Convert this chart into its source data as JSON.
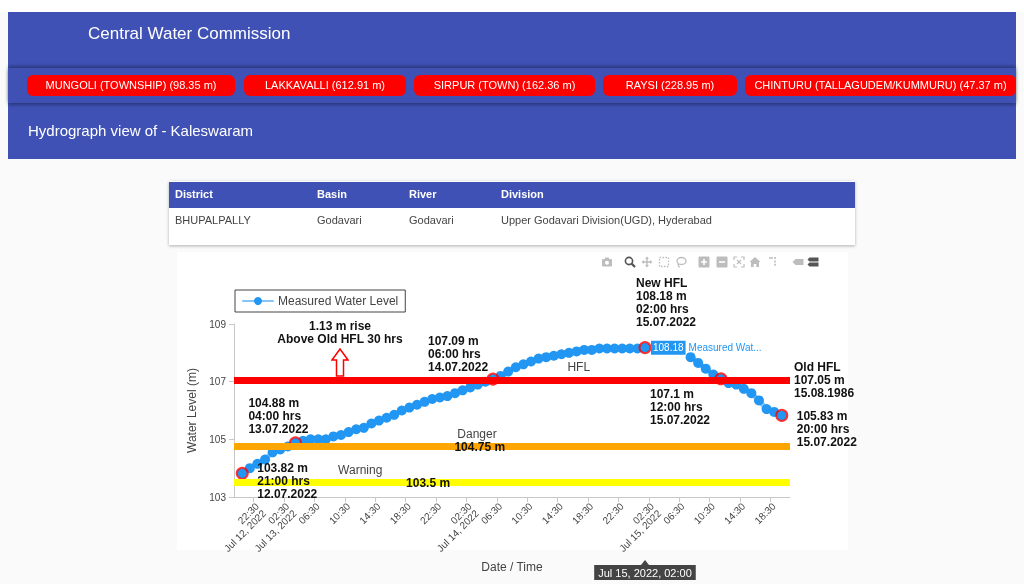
{
  "chart_data": {
    "type": "line",
    "title": "Hydrograph view of - Kaleswaram",
    "xlabel": "Date / Time",
    "ylabel": "Water Level (m)",
    "x": [
      "2022-07-12T21:00",
      "2022-07-12T22:00",
      "2022-07-12T23:00",
      "2022-07-13T00:00",
      "2022-07-13T01:00",
      "2022-07-13T02:00",
      "2022-07-13T03:00",
      "2022-07-13T04:00",
      "2022-07-13T05:00",
      "2022-07-13T06:00",
      "2022-07-13T07:00",
      "2022-07-13T08:00",
      "2022-07-13T09:00",
      "2022-07-13T10:00",
      "2022-07-13T11:00",
      "2022-07-13T12:00",
      "2022-07-13T13:00",
      "2022-07-13T14:00",
      "2022-07-13T15:00",
      "2022-07-13T16:00",
      "2022-07-13T17:00",
      "2022-07-13T18:00",
      "2022-07-13T19:00",
      "2022-07-13T20:00",
      "2022-07-13T21:00",
      "2022-07-13T22:00",
      "2022-07-13T23:00",
      "2022-07-14T00:00",
      "2022-07-14T01:00",
      "2022-07-14T02:00",
      "2022-07-14T03:00",
      "2022-07-14T04:00",
      "2022-07-14T05:00",
      "2022-07-14T06:00",
      "2022-07-14T07:00",
      "2022-07-14T08:00",
      "2022-07-14T09:00",
      "2022-07-14T10:00",
      "2022-07-14T11:00",
      "2022-07-14T12:00",
      "2022-07-14T13:00",
      "2022-07-14T14:00",
      "2022-07-14T15:00",
      "2022-07-14T16:00",
      "2022-07-14T17:00",
      "2022-07-14T18:00",
      "2022-07-14T19:00",
      "2022-07-14T20:00",
      "2022-07-14T21:00",
      "2022-07-14T22:00",
      "2022-07-14T23:00",
      "2022-07-15T00:00",
      "2022-07-15T01:00",
      "2022-07-15T02:00",
      "2022-07-15T03:00",
      "2022-07-15T04:00",
      "2022-07-15T05:00",
      "2022-07-15T06:00",
      "2022-07-15T07:00",
      "2022-07-15T08:00",
      "2022-07-15T09:00",
      "2022-07-15T10:00",
      "2022-07-15T11:00",
      "2022-07-15T12:00",
      "2022-07-15T13:00",
      "2022-07-15T14:00",
      "2022-07-15T15:00",
      "2022-07-15T16:00",
      "2022-07-15T17:00",
      "2022-07-15T18:00",
      "2022-07-15T19:00",
      "2022-07-15T20:00"
    ],
    "series": [
      {
        "name": "Measured Water Level",
        "color": "#2196f3",
        "values": [
          103.82,
          104.0,
          104.15,
          104.3,
          104.55,
          104.65,
          104.75,
          104.88,
          104.95,
          105.0,
          105.0,
          105.0,
          105.1,
          105.15,
          105.25,
          105.35,
          105.4,
          105.55,
          105.65,
          105.75,
          105.85,
          106.0,
          106.1,
          106.2,
          106.3,
          106.4,
          106.45,
          106.5,
          106.6,
          106.7,
          106.8,
          106.9,
          107.0,
          107.09,
          107.2,
          107.35,
          107.5,
          107.6,
          107.7,
          107.8,
          107.85,
          107.9,
          107.95,
          108.0,
          108.05,
          108.1,
          108.1,
          108.15,
          108.15,
          108.15,
          108.15,
          108.15,
          108.15,
          108.18,
          null,
          null,
          null,
          null,
          null,
          107.85,
          107.65,
          107.45,
          107.25,
          107.1,
          106.95,
          106.9,
          106.75,
          106.6,
          106.35,
          106.05,
          105.95,
          105.83
        ]
      },
      {
        "type": "scatter",
        "color": "#ff0000",
        "x": [
          "2022-07-12T21:00",
          "2022-07-13T04:00",
          "2022-07-14T06:00",
          "2022-07-15T02:00",
          "2022-07-15T12:00",
          "2022-07-15T20:00"
        ],
        "values": [
          103.82,
          104.88,
          107.09,
          108.18,
          107.1,
          105.83
        ]
      }
    ],
    "xlim": [
      "2022-07-12T19:55",
      "2022-07-15T21:05"
    ],
    "xticks": [
      {
        "value": "2022-07-12T22:30",
        "label": "22:30\nJul 12, 2022"
      },
      {
        "value": "2022-07-13T02:30",
        "label": "02:30\nJul 13, 2022"
      },
      {
        "value": "2022-07-13T06:30",
        "label": "06:30"
      },
      {
        "value": "2022-07-13T10:30",
        "label": "10:30"
      },
      {
        "value": "2022-07-13T14:30",
        "label": "14:30"
      },
      {
        "value": "2022-07-13T18:30",
        "label": "18:30"
      },
      {
        "value": "2022-07-13T22:30",
        "label": "22:30"
      },
      {
        "value": "2022-07-14T02:30",
        "label": "02:30\nJul 14, 2022"
      },
      {
        "value": "2022-07-14T06:30",
        "label": "06:30"
      },
      {
        "value": "2022-07-14T10:30",
        "label": "10:30"
      },
      {
        "value": "2022-07-14T14:30",
        "label": "14:30"
      },
      {
        "value": "2022-07-14T18:30",
        "label": "18:30"
      },
      {
        "value": "2022-07-14T22:30",
        "label": "22:30"
      },
      {
        "value": "2022-07-15T02:30",
        "label": "02:30\nJul 15, 2022"
      },
      {
        "value": "2022-07-15T06:30",
        "label": "06:30"
      },
      {
        "value": "2022-07-15T10:30",
        "label": "10:30"
      },
      {
        "value": "2022-07-15T14:30",
        "label": "14:30"
      },
      {
        "value": "2022-07-15T18:30",
        "label": "18:30"
      }
    ],
    "ylim": [
      103,
      109
    ],
    "yticks": [
      103,
      105,
      107,
      109
    ],
    "legend": "top left",
    "marker": "circle",
    "ref_lines": [
      {
        "axis": "y",
        "value": 107.05,
        "label": "HFL",
        "color": "#ff0000"
      },
      {
        "axis": "y",
        "value": 104.75,
        "label": "Danger",
        "color": "#ffa500"
      },
      {
        "axis": "y",
        "value": 103.5,
        "label": "Warning",
        "color": "#ffff00"
      }
    ],
    "annotations": [
      "Central Water Commission",
      "MUNGOLI (TOWNSHIP) (98.35 m)",
      "LAKKAVALLI (612.91 m)",
      "SIRPUR (TOWN) (162.36 m)",
      "RAYSI (228.95 m)",
      "CHINTURU (TALLAGUDEM/KUMMURU) (47.37 m)",
      "District",
      "Basin",
      "River",
      "Division",
      "BHUPALPALLY",
      "Godavari",
      "Godavari",
      "Upper Godavari Division(UGD), Hyderabad",
      "1.13 m rise\nAbove Old HFL 30 hrs",
      {
        "text": "103.82 m\n21:00 hrs\n12.07.2022",
        "x": "2022-07-12T21:00",
        "y": 103.82
      },
      {
        "text": "104.88 m\n04:00 hrs\n13.07.2022",
        "x": "2022-07-13T04:00",
        "y": 104.88
      },
      {
        "text": "107.09 m\n06:00 hrs\n14.07.2022",
        "x": "2022-07-14T06:00",
        "y": 107.09
      },
      {
        "text": "New HFL\n108.18 m\n02:00 hrs\n15.07.2022",
        "x": "2022-07-15T02:00",
        "y": 108.18
      },
      {
        "text": "107.1 m\n12:00 hrs\n15.07.2022",
        "x": "2022-07-15T12:00",
        "y": 107.1
      },
      {
        "text": "105.83 m\n20:00 hrs\n15.07.2022",
        "x": "2022-07-15T20:00",
        "y": 105.83
      },
      "Old HFL\n107.05 m\n15.08.1986",
      "104.75 m",
      "103.5 m",
      {
        "text": "108.18",
        "x": "2022-07-15T02:00",
        "y": 108.18
      },
      "Measured Wat...",
      "Jul 15, 2022, 02:00"
    ]
  }
}
